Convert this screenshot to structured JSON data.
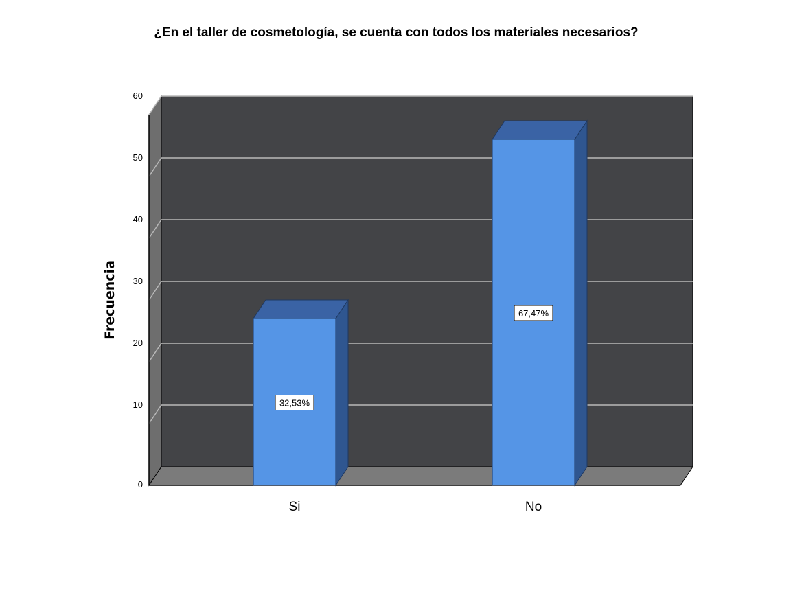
{
  "chart_data": {
    "type": "bar",
    "title": "¿En el taller de cosmetología, se cuenta con todos los materiales necesarios?",
    "xlabel": "",
    "ylabel": "Frecuencia",
    "categories": [
      "Si",
      "No"
    ],
    "values": [
      27,
      56
    ],
    "data_labels": [
      "32,53%",
      "67,47%"
    ],
    "ylim": [
      0,
      60
    ],
    "yticks": [
      0,
      10,
      20,
      30,
      40,
      50,
      60
    ],
    "grid": true,
    "legend": "none",
    "colors": {
      "bar_front": "#5595e6",
      "bar_side": "#2f5690",
      "bar_top": "#3a63a5",
      "plot_back": "#434447",
      "floor": "#7b7b7b",
      "gridline": "#b9b9b9"
    }
  }
}
